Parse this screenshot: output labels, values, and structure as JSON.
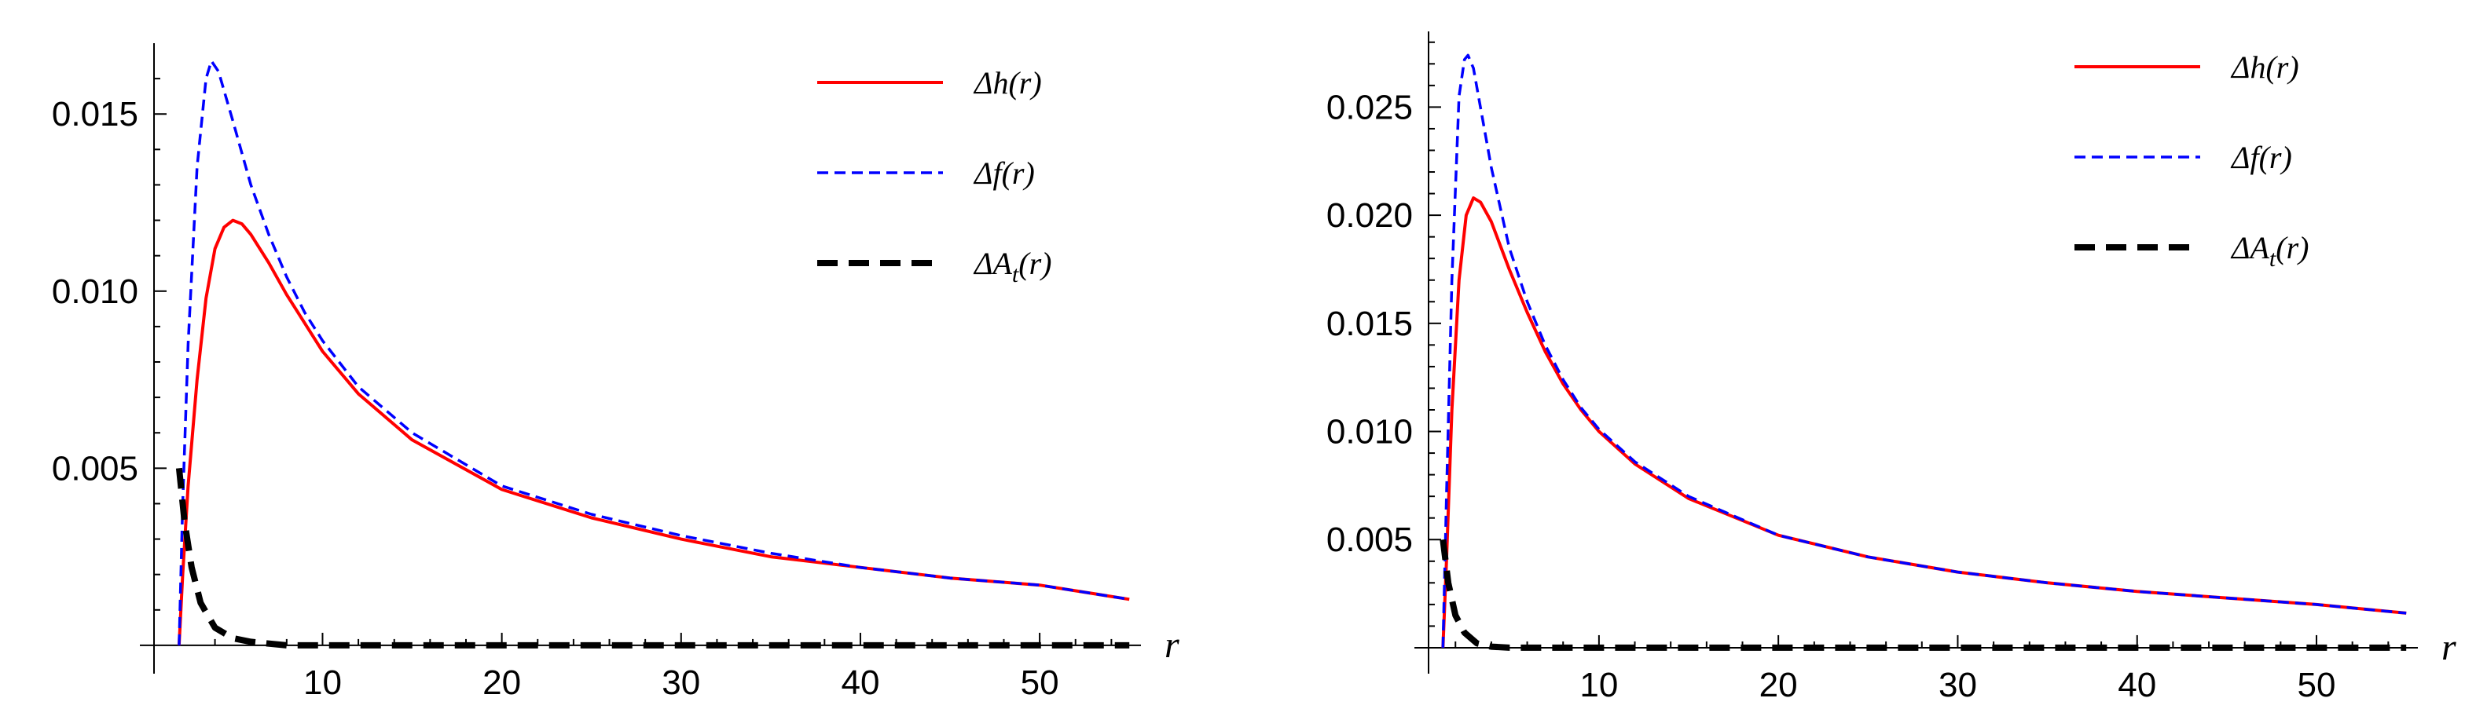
{
  "chart_data": [
    {
      "type": "line",
      "xlabel": "r",
      "ylabel": "",
      "xlim": [
        0.6,
        56
      ],
      "ylim": [
        -0.0008,
        0.017
      ],
      "x_ticks": [
        10,
        20,
        30,
        40,
        50
      ],
      "x_tick_labels": [
        "10",
        "20",
        "30",
        "40",
        "50"
      ],
      "y_ticks": [
        0.005,
        0.01,
        0.015
      ],
      "y_tick_labels": [
        "0.005",
        "0.010",
        "0.015"
      ],
      "legend_position": "top-right",
      "series": [
        {
          "name": "Δh(r)",
          "color": "#ff0000",
          "style": "solid",
          "points": [
            [
              2.0,
              0.0
            ],
            [
              2.2,
              0.002
            ],
            [
              2.5,
              0.0045
            ],
            [
              3.0,
              0.0075
            ],
            [
              3.5,
              0.0098
            ],
            [
              4.0,
              0.0112
            ],
            [
              4.5,
              0.0118
            ],
            [
              5.0,
              0.012
            ],
            [
              5.5,
              0.0119
            ],
            [
              6.0,
              0.0116
            ],
            [
              7.0,
              0.0108
            ],
            [
              8.0,
              0.0099
            ],
            [
              9.0,
              0.0091
            ],
            [
              10.0,
              0.0083
            ],
            [
              12.0,
              0.0071
            ],
            [
              15.0,
              0.0058
            ],
            [
              20.0,
              0.0044
            ],
            [
              25.0,
              0.0036
            ],
            [
              30.0,
              0.003
            ],
            [
              35.0,
              0.0025
            ],
            [
              40.0,
              0.0022
            ],
            [
              45.0,
              0.0019
            ],
            [
              50.0,
              0.0017
            ],
            [
              55.0,
              0.0013
            ]
          ]
        },
        {
          "name": "Δf(r)",
          "color": "#0000ff",
          "style": "dashed",
          "points": [
            [
              2.0,
              0.0
            ],
            [
              2.2,
              0.004
            ],
            [
              2.5,
              0.0085
            ],
            [
              3.0,
              0.0135
            ],
            [
              3.5,
              0.016
            ],
            [
              3.8,
              0.0165
            ],
            [
              4.2,
              0.0162
            ],
            [
              5.0,
              0.0148
            ],
            [
              6.0,
              0.013
            ],
            [
              7.0,
              0.0116
            ],
            [
              8.0,
              0.0104
            ],
            [
              9.0,
              0.0094
            ],
            [
              10.0,
              0.0086
            ],
            [
              12.0,
              0.0073
            ],
            [
              15.0,
              0.006
            ],
            [
              20.0,
              0.0045
            ],
            [
              25.0,
              0.0037
            ],
            [
              30.0,
              0.0031
            ],
            [
              35.0,
              0.0026
            ],
            [
              40.0,
              0.0022
            ],
            [
              45.0,
              0.0019
            ],
            [
              50.0,
              0.0017
            ],
            [
              55.0,
              0.0013
            ]
          ]
        },
        {
          "name": "ΔA_t(r)",
          "color": "#000000",
          "style": "dashed-thick",
          "points": [
            [
              2.0,
              0.005
            ],
            [
              2.3,
              0.0035
            ],
            [
              2.7,
              0.0022
            ],
            [
              3.2,
              0.0012
            ],
            [
              4.0,
              0.0005
            ],
            [
              5.0,
              0.0002
            ],
            [
              6.0,
              0.0001
            ],
            [
              8.0,
              0.0
            ],
            [
              55.0,
              0.0
            ]
          ]
        }
      ]
    },
    {
      "type": "line",
      "xlabel": "r",
      "ylabel": "",
      "xlim": [
        0.5,
        56
      ],
      "ylim": [
        -0.0012,
        0.0285
      ],
      "x_ticks": [
        10,
        20,
        30,
        40,
        50
      ],
      "x_tick_labels": [
        "10",
        "20",
        "30",
        "40",
        "50"
      ],
      "y_ticks": [
        0.005,
        0.01,
        0.015,
        0.02,
        0.025
      ],
      "y_tick_labels": [
        "0.005",
        "0.010",
        "0.015",
        "0.020",
        "0.025"
      ],
      "legend_position": "top-right",
      "series": [
        {
          "name": "Δh(r)",
          "color": "#ff0000",
          "style": "solid",
          "points": [
            [
              1.3,
              0.0
            ],
            [
              1.5,
              0.004
            ],
            [
              1.8,
              0.011
            ],
            [
              2.2,
              0.017
            ],
            [
              2.6,
              0.02
            ],
            [
              3.0,
              0.0208
            ],
            [
              3.4,
              0.0206
            ],
            [
              4.0,
              0.0197
            ],
            [
              5.0,
              0.0175
            ],
            [
              6.0,
              0.0155
            ],
            [
              7.0,
              0.0137
            ],
            [
              8.0,
              0.0122
            ],
            [
              9.0,
              0.011
            ],
            [
              10.0,
              0.01
            ],
            [
              12.0,
              0.0085
            ],
            [
              15.0,
              0.0069
            ],
            [
              20.0,
              0.0052
            ],
            [
              25.0,
              0.0042
            ],
            [
              30.0,
              0.0035
            ],
            [
              35.0,
              0.003
            ],
            [
              40.0,
              0.0026
            ],
            [
              45.0,
              0.0023
            ],
            [
              50.0,
              0.002
            ],
            [
              55.0,
              0.0016
            ]
          ]
        },
        {
          "name": "Δf(r)",
          "color": "#0000ff",
          "style": "dashed",
          "points": [
            [
              1.3,
              0.0
            ],
            [
              1.5,
              0.007
            ],
            [
              1.8,
              0.017
            ],
            [
              2.2,
              0.0255
            ],
            [
              2.5,
              0.0272
            ],
            [
              2.7,
              0.0274
            ],
            [
              3.0,
              0.0268
            ],
            [
              3.5,
              0.0245
            ],
            [
              4.0,
              0.0222
            ],
            [
              5.0,
              0.0185
            ],
            [
              6.0,
              0.016
            ],
            [
              7.0,
              0.014
            ],
            [
              8.0,
              0.0124
            ],
            [
              9.0,
              0.0111
            ],
            [
              10.0,
              0.0101
            ],
            [
              12.0,
              0.0086
            ],
            [
              15.0,
              0.007
            ],
            [
              20.0,
              0.0052
            ],
            [
              25.0,
              0.0042
            ],
            [
              30.0,
              0.0035
            ],
            [
              35.0,
              0.003
            ],
            [
              40.0,
              0.0026
            ],
            [
              45.0,
              0.0023
            ],
            [
              50.0,
              0.002
            ],
            [
              55.0,
              0.0016
            ]
          ]
        },
        {
          "name": "ΔA_t(r)",
          "color": "#000000",
          "style": "dashed-thick",
          "points": [
            [
              1.3,
              0.005
            ],
            [
              1.6,
              0.003
            ],
            [
              2.0,
              0.0015
            ],
            [
              2.5,
              0.0007
            ],
            [
              3.2,
              0.0002
            ],
            [
              4.0,
              5e-05
            ],
            [
              5.0,
              0.0
            ],
            [
              55.0,
              0.0
            ]
          ]
        }
      ]
    }
  ]
}
